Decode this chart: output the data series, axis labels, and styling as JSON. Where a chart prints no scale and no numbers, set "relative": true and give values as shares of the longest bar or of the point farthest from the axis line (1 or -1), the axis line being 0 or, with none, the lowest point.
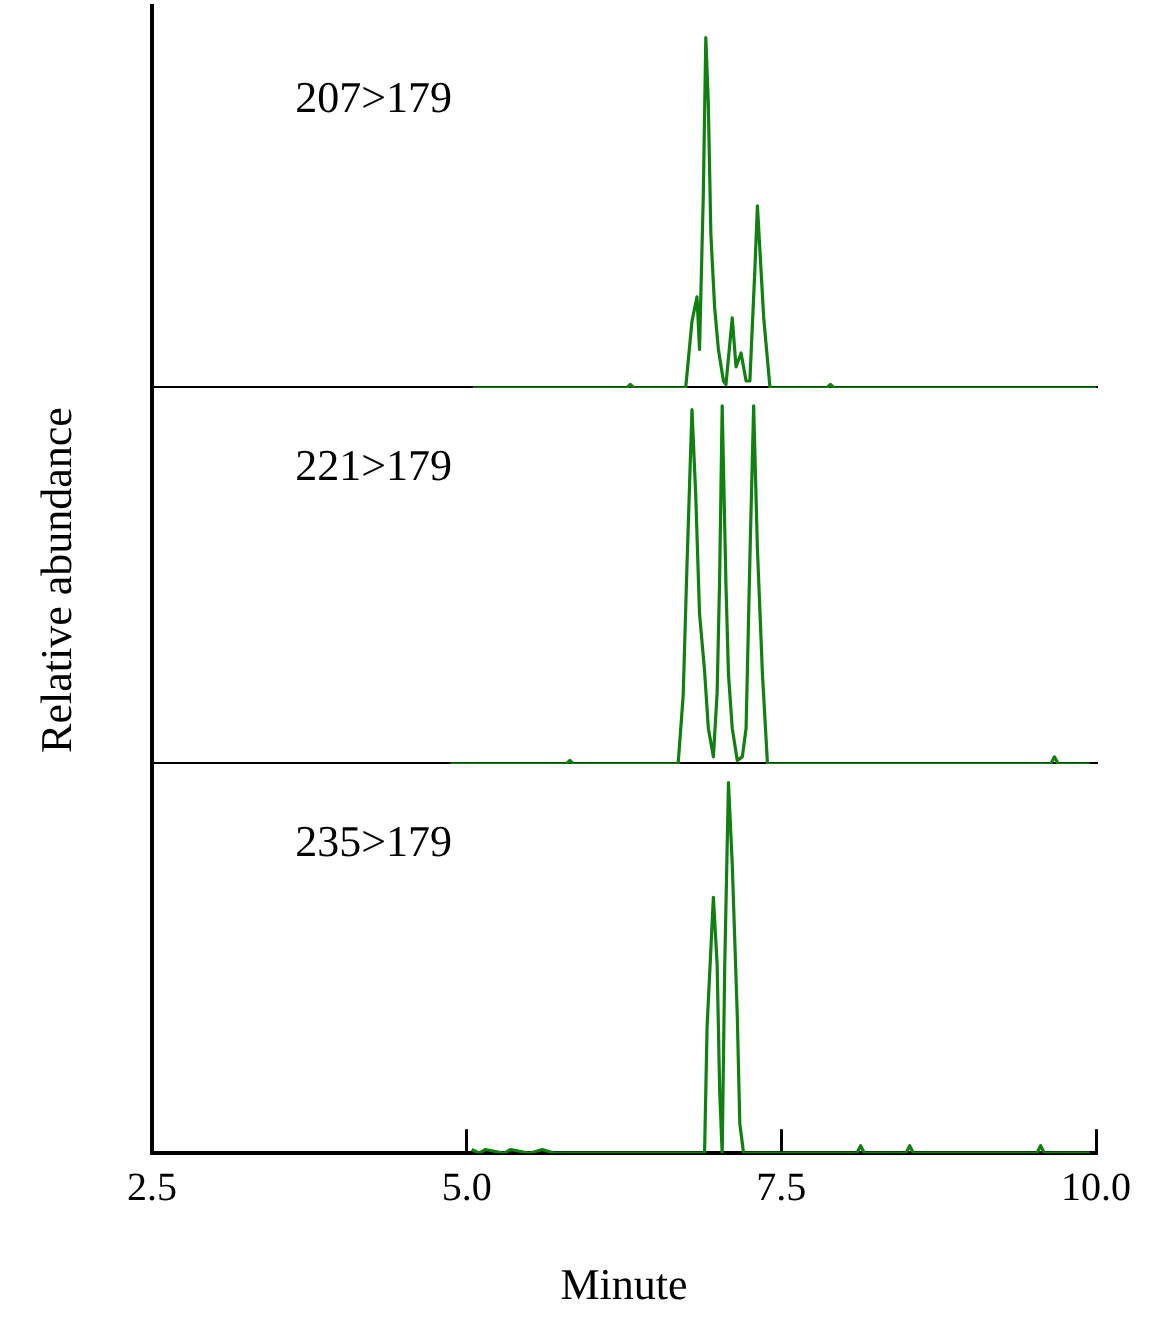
{
  "chart_data": [
    {
      "type": "line",
      "relative": true,
      "annotations": [
        "207>179"
      ],
      "xlim": [
        2.5,
        10.0
      ],
      "tick_labels": false,
      "grid": false,
      "legend": false,
      "marker": "none",
      "ylabel": "Relative abundance",
      "series": [
        {
          "color": "#108010",
          "x": [
            5.05,
            6.27,
            6.3,
            6.33,
            6.74,
            6.79,
            6.83,
            6.85,
            6.88,
            6.9,
            6.92,
            6.94,
            6.97,
            7.0,
            7.04,
            7.06,
            7.11,
            7.14,
            7.18,
            7.22,
            7.25,
            7.29,
            7.31,
            7.36,
            7.41,
            7.86,
            7.89,
            7.92,
            10.0
          ],
          "values": [
            0.0,
            0.0,
            0.01,
            0.0,
            0.0,
            0.19,
            0.26,
            0.11,
            0.55,
            1.0,
            0.81,
            0.44,
            0.23,
            0.11,
            0.02,
            0.01,
            0.2,
            0.06,
            0.1,
            0.02,
            0.02,
            0.34,
            0.52,
            0.2,
            0.0,
            0.0,
            0.01,
            0.0,
            0.0
          ]
        }
      ]
    },
    {
      "type": "line",
      "relative": true,
      "annotations": [
        "221>179"
      ],
      "xlim": [
        2.5,
        10.0
      ],
      "tick_labels": false,
      "grid": false,
      "legend": false,
      "marker": "none",
      "series": [
        {
          "color": "#108010",
          "x": [
            4.87,
            5.79,
            5.82,
            5.85,
            6.68,
            6.72,
            6.75,
            6.79,
            6.82,
            6.85,
            6.89,
            6.92,
            6.96,
            6.99,
            7.01,
            7.03,
            7.06,
            7.08,
            7.11,
            7.15,
            7.19,
            7.22,
            7.25,
            7.28,
            7.31,
            7.35,
            7.39,
            9.64,
            9.67,
            9.7,
            9.95
          ],
          "values": [
            0.0,
            0.0,
            0.01,
            0.0,
            0.0,
            0.19,
            0.55,
            0.99,
            0.75,
            0.42,
            0.26,
            0.1,
            0.02,
            0.2,
            0.52,
            1.0,
            0.5,
            0.25,
            0.1,
            0.01,
            0.02,
            0.1,
            0.57,
            1.0,
            0.6,
            0.25,
            0.0,
            0.0,
            0.02,
            0.0,
            0.0
          ]
        }
      ]
    },
    {
      "type": "line",
      "relative": true,
      "annotations": [
        "235>179"
      ],
      "xlim": [
        2.5,
        10.0
      ],
      "xticks": [
        {
          "value": 2.5,
          "label": "2.5"
        },
        {
          "value": 5.0,
          "label": "5.0"
        },
        {
          "value": 7.5,
          "label": "7.5"
        },
        {
          "value": 10.0,
          "label": "10.0"
        }
      ],
      "tick_labels": "x",
      "grid": false,
      "legend": false,
      "marker": "none",
      "xlabel": "Minute",
      "series": [
        {
          "color": "#108010",
          "x": [
            5.04,
            5.1,
            5.15,
            5.3,
            5.35,
            5.5,
            5.6,
            5.7,
            5.8,
            6.89,
            6.91,
            6.96,
            6.99,
            7.01,
            7.03,
            7.05,
            7.08,
            7.11,
            7.15,
            7.17,
            7.2,
            8.1,
            8.13,
            8.16,
            8.49,
            8.52,
            8.55,
            9.53,
            9.56,
            9.59,
            9.95
          ],
          "values": [
            0.01,
            0.0,
            0.01,
            0.0,
            0.01,
            0.0,
            0.01,
            0.0,
            0.0,
            0.0,
            0.34,
            0.69,
            0.51,
            0.17,
            0.0,
            0.5,
            1.0,
            0.78,
            0.37,
            0.08,
            0.0,
            0.0,
            0.02,
            0.0,
            0.0,
            0.02,
            0.0,
            0.0,
            0.02,
            0.0,
            0.0
          ]
        }
      ]
    }
  ]
}
